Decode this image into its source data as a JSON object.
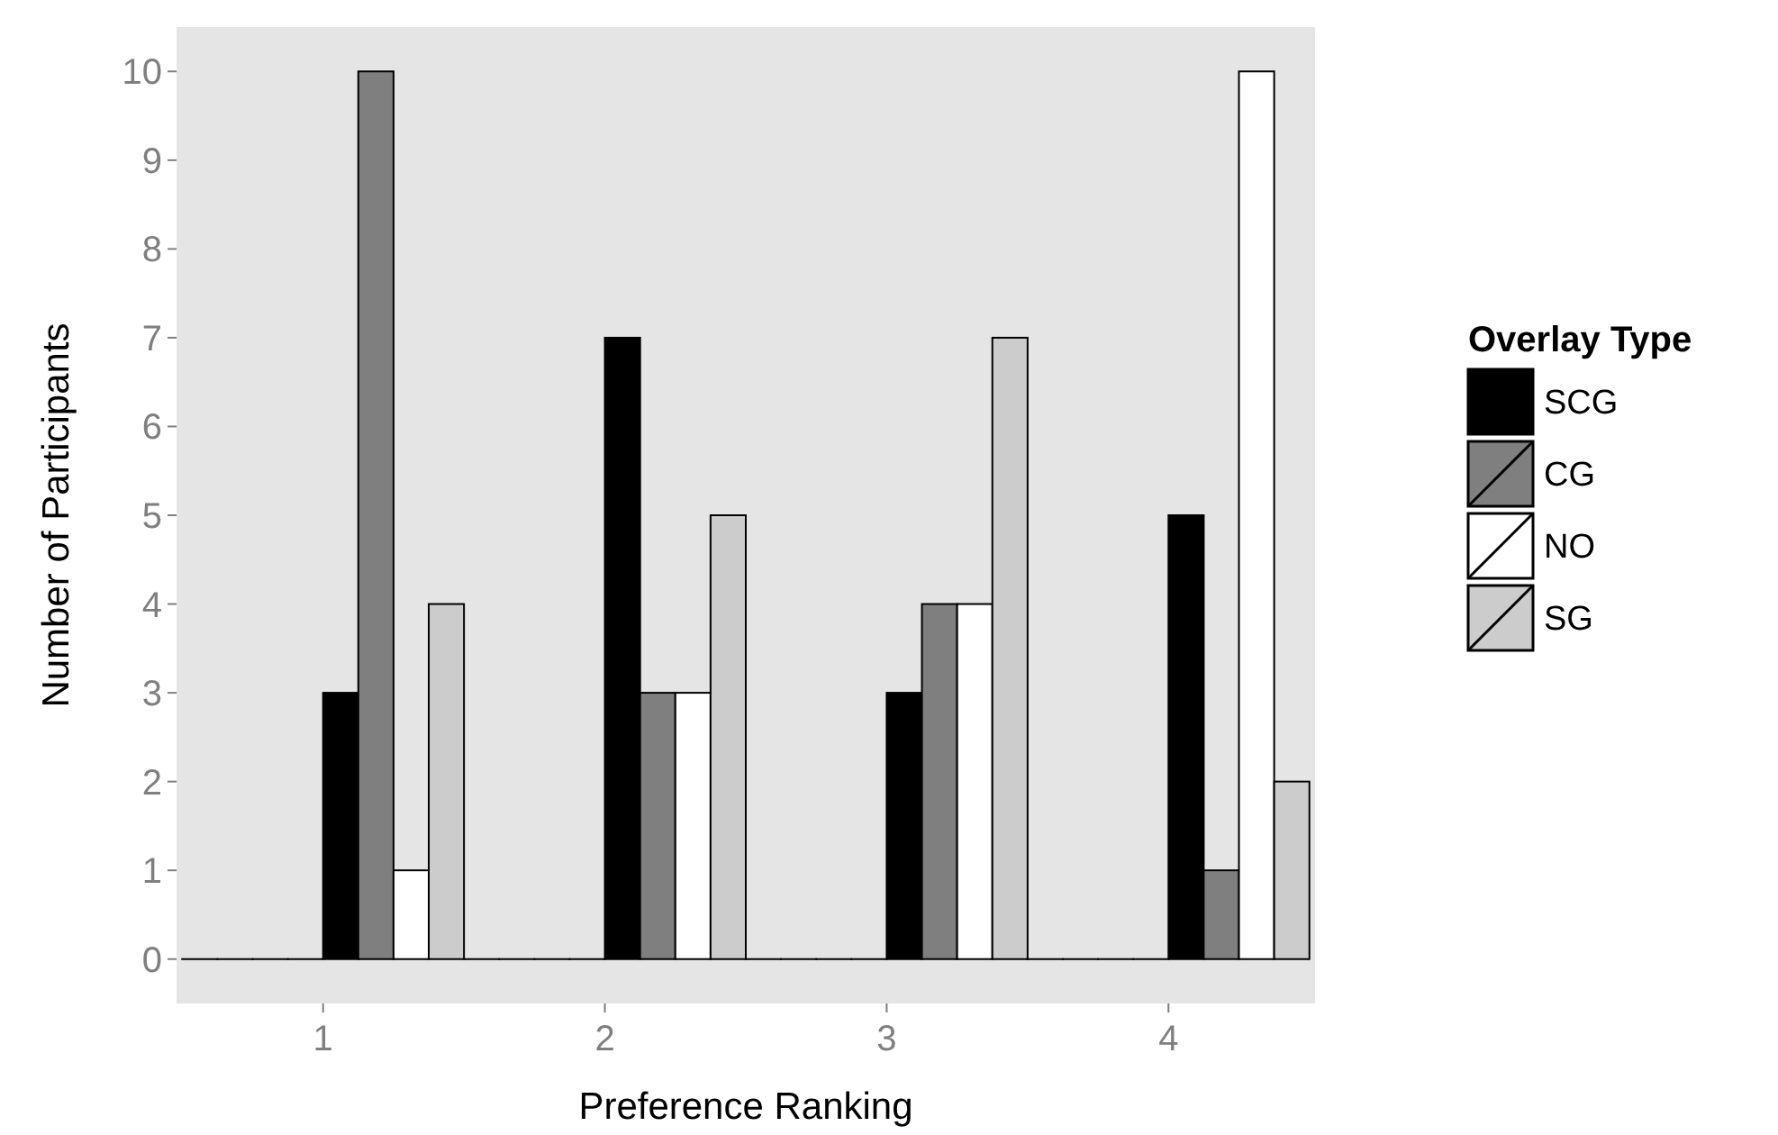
{
  "chart_data": {
    "type": "bar",
    "xlabel": "Preference Ranking",
    "ylabel": "Number of Participants",
    "legend_title": "Overlay Type",
    "categories": [
      "1",
      "2",
      "3",
      "4"
    ],
    "series": [
      {
        "color": "#000000",
        "values": [
          0,
          0,
          0,
          0
        ]
      },
      {
        "color": "#000000",
        "values": [
          0,
          0,
          0,
          0
        ]
      },
      {
        "color": "#000000",
        "values": [
          0,
          0,
          0,
          0
        ]
      },
      {
        "color": "#000000",
        "values": [
          0,
          0,
          0,
          0
        ]
      },
      {
        "name": "SCG",
        "color": "#000000",
        "values": [
          3,
          7,
          3,
          5
        ]
      },
      {
        "name": "CG",
        "color": "#7f7f7f",
        "values": [
          10,
          3,
          4,
          1
        ]
      },
      {
        "name": "NO",
        "color": "#ffffff",
        "values": [
          1,
          3,
          4,
          10
        ]
      },
      {
        "name": "SG",
        "color": "#cccccc",
        "values": [
          4,
          5,
          7,
          2
        ]
      }
    ],
    "ylim": [
      -0.5,
      10.5
    ],
    "yticks": [
      0,
      1,
      2,
      3,
      4,
      5,
      6,
      7,
      8,
      9,
      10
    ],
    "grid": false,
    "legend": "right"
  }
}
